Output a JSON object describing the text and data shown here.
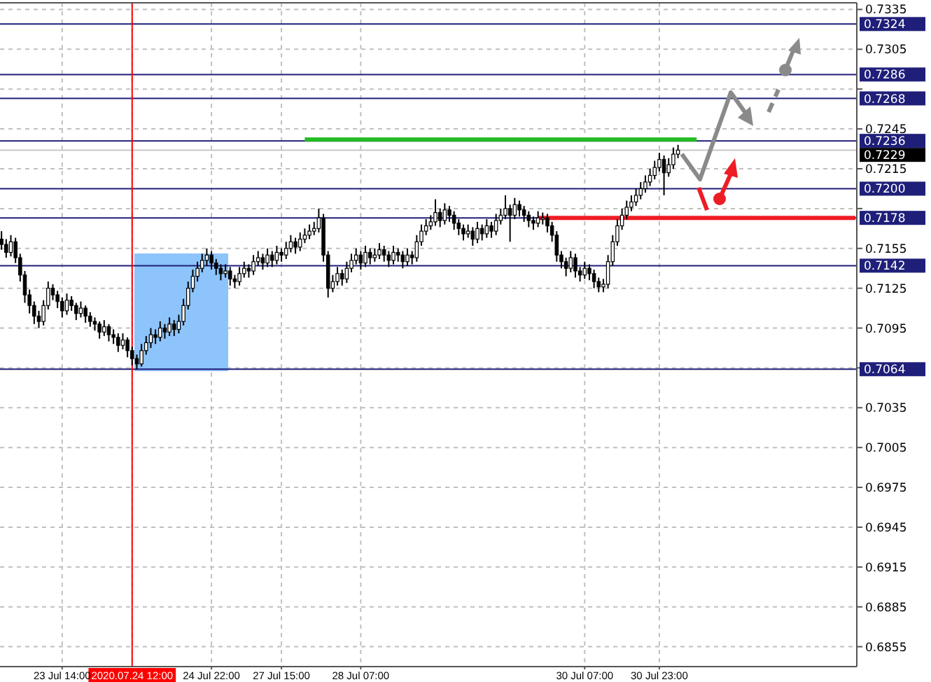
{
  "chart_data": {
    "type": "candlestick",
    "categories": [
      null,
      null,
      null,
      null,
      null,
      null,
      null,
      null,
      null,
      null,
      null,
      null,
      null,
      "23 Jul 14:00",
      null,
      null,
      null,
      null,
      null,
      null,
      null,
      null,
      null,
      null,
      null,
      null,
      null,
      null,
      "2020.07.24 12:00",
      null,
      null,
      null,
      null,
      null,
      null,
      null,
      null,
      null,
      null,
      null,
      null,
      null,
      null,
      null,
      null,
      "24 Jul 22:00",
      null,
      null,
      null,
      null,
      null,
      null,
      null,
      null,
      null,
      null,
      null,
      null,
      null,
      null,
      "27 Jul 15:00",
      null,
      null,
      null,
      null,
      null,
      null,
      null,
      null,
      null,
      null,
      null,
      null,
      null,
      null,
      null,
      null,
      "28 Jul 07:00",
      null,
      null,
      null,
      null,
      null,
      null,
      null,
      null,
      null,
      null,
      null,
      null,
      null,
      null,
      null,
      null,
      null,
      null,
      null,
      null,
      null,
      null,
      null,
      null,
      null,
      null,
      null,
      null,
      null,
      null,
      null,
      null,
      null,
      null,
      null,
      null,
      null,
      null,
      null,
      null,
      null,
      null,
      null,
      null,
      null,
      null,
      null,
      "30 Jul 07:00",
      null,
      null,
      null,
      null,
      null,
      null,
      null,
      null,
      null,
      null,
      null,
      null,
      null,
      null,
      null,
      "30 Jul 23:00",
      null,
      null,
      null,
      null,
      null,
      null,
      null,
      null,
      null,
      null,
      null,
      null,
      null,
      null,
      null,
      null,
      null,
      null,
      null,
      null,
      null,
      null,
      null,
      null,
      null,
      null,
      null,
      null,
      null,
      null,
      null,
      null,
      null,
      null,
      null,
      null,
      null,
      null,
      null,
      null,
      null,
      null
    ],
    "ohlc": [
      [
        0.7162,
        0.7168,
        0.7154,
        0.7158
      ],
      [
        0.7158,
        0.7162,
        0.7148,
        0.7152
      ],
      [
        0.7152,
        0.7165,
        0.7149,
        0.716
      ],
      [
        0.716,
        0.7163,
        0.7144,
        0.7148
      ],
      [
        0.7148,
        0.7151,
        0.713,
        0.7135
      ],
      [
        0.7135,
        0.7138,
        0.7114,
        0.712
      ],
      [
        0.712,
        0.7124,
        0.7106,
        0.7112
      ],
      [
        0.7112,
        0.7115,
        0.7098,
        0.7104
      ],
      [
        0.7104,
        0.7108,
        0.7095,
        0.71
      ],
      [
        0.71,
        0.7116,
        0.7097,
        0.7112
      ],
      [
        0.7112,
        0.713,
        0.7109,
        0.7125
      ],
      [
        0.7125,
        0.7128,
        0.7116,
        0.712
      ],
      [
        0.712,
        0.7123,
        0.711,
        0.7115
      ],
      [
        0.7115,
        0.7118,
        0.7103,
        0.7108
      ],
      [
        0.7108,
        0.7121,
        0.7105,
        0.7116
      ],
      [
        0.7116,
        0.7119,
        0.7108,
        0.7112
      ],
      [
        0.7112,
        0.7114,
        0.7101,
        0.7106
      ],
      [
        0.7106,
        0.7115,
        0.7103,
        0.711
      ],
      [
        0.711,
        0.7112,
        0.7099,
        0.7104
      ],
      [
        0.7104,
        0.7107,
        0.7096,
        0.71
      ],
      [
        0.71,
        0.7103,
        0.7093,
        0.7098
      ],
      [
        0.7098,
        0.71,
        0.7087,
        0.7092
      ],
      [
        0.7092,
        0.7101,
        0.7089,
        0.7096
      ],
      [
        0.7096,
        0.7098,
        0.7085,
        0.709
      ],
      [
        0.709,
        0.7094,
        0.7083,
        0.7088
      ],
      [
        0.7088,
        0.7091,
        0.7077,
        0.7082
      ],
      [
        0.7082,
        0.7091,
        0.7079,
        0.7086
      ],
      [
        0.7086,
        0.7088,
        0.7073,
        0.7078
      ],
      [
        0.7078,
        0.7081,
        0.7067,
        0.7072
      ],
      [
        0.7072,
        0.7075,
        0.7064,
        0.7068
      ],
      [
        0.7068,
        0.7083,
        0.7066,
        0.7078
      ],
      [
        0.7078,
        0.7089,
        0.7075,
        0.7084
      ],
      [
        0.7084,
        0.7095,
        0.708,
        0.709
      ],
      [
        0.709,
        0.7094,
        0.7083,
        0.7088
      ],
      [
        0.7088,
        0.71,
        0.7085,
        0.7095
      ],
      [
        0.7095,
        0.7098,
        0.7087,
        0.7092
      ],
      [
        0.7092,
        0.7103,
        0.7089,
        0.7098
      ],
      [
        0.7098,
        0.7101,
        0.7089,
        0.7094
      ],
      [
        0.7094,
        0.7105,
        0.7091,
        0.71
      ],
      [
        0.71,
        0.7117,
        0.7097,
        0.7112
      ],
      [
        0.7112,
        0.713,
        0.7109,
        0.7125
      ],
      [
        0.7125,
        0.7139,
        0.7122,
        0.7134
      ],
      [
        0.7134,
        0.7145,
        0.713,
        0.714
      ],
      [
        0.714,
        0.7151,
        0.7137,
        0.7146
      ],
      [
        0.7146,
        0.7155,
        0.7142,
        0.715
      ],
      [
        0.715,
        0.7153,
        0.7139,
        0.7144
      ],
      [
        0.7144,
        0.7147,
        0.7135,
        0.714
      ],
      [
        0.714,
        0.7143,
        0.7131,
        0.7136
      ],
      [
        0.7136,
        0.7143,
        0.7133,
        0.7138
      ],
      [
        0.7138,
        0.7141,
        0.7127,
        0.7132
      ],
      [
        0.7132,
        0.7135,
        0.7125,
        0.713
      ],
      [
        0.713,
        0.7141,
        0.7127,
        0.7136
      ],
      [
        0.7136,
        0.7145,
        0.7133,
        0.714
      ],
      [
        0.714,
        0.7143,
        0.7133,
        0.7138
      ],
      [
        0.7138,
        0.715,
        0.7135,
        0.7145
      ],
      [
        0.7145,
        0.7153,
        0.7142,
        0.7148
      ],
      [
        0.7148,
        0.7151,
        0.7139,
        0.7144
      ],
      [
        0.7144,
        0.7155,
        0.7141,
        0.715
      ],
      [
        0.715,
        0.7153,
        0.7141,
        0.7146
      ],
      [
        0.7146,
        0.7157,
        0.7143,
        0.7152
      ],
      [
        0.7152,
        0.7155,
        0.7145,
        0.715
      ],
      [
        0.715,
        0.716,
        0.7147,
        0.7155
      ],
      [
        0.7155,
        0.7165,
        0.7152,
        0.716
      ],
      [
        0.716,
        0.7163,
        0.7151,
        0.7156
      ],
      [
        0.7156,
        0.7167,
        0.7153,
        0.7162
      ],
      [
        0.7162,
        0.717,
        0.7159,
        0.7165
      ],
      [
        0.7165,
        0.7173,
        0.7162,
        0.7168
      ],
      [
        0.7168,
        0.7175,
        0.7165,
        0.717
      ],
      [
        0.717,
        0.7185,
        0.7167,
        0.7178
      ],
      [
        0.7178,
        0.7181,
        0.7145,
        0.715
      ],
      [
        0.715,
        0.7153,
        0.7118,
        0.7125
      ],
      [
        0.7125,
        0.7135,
        0.7122,
        0.713
      ],
      [
        0.713,
        0.7141,
        0.7127,
        0.7136
      ],
      [
        0.7136,
        0.7139,
        0.7127,
        0.7132
      ],
      [
        0.7132,
        0.7145,
        0.7129,
        0.714
      ],
      [
        0.714,
        0.7151,
        0.7137,
        0.7146
      ],
      [
        0.7146,
        0.7155,
        0.7143,
        0.715
      ],
      [
        0.715,
        0.7153,
        0.7139,
        0.7144
      ],
      [
        0.7144,
        0.7157,
        0.7141,
        0.7152
      ],
      [
        0.7152,
        0.7155,
        0.7143,
        0.7148
      ],
      [
        0.7148,
        0.7155,
        0.7145,
        0.715
      ],
      [
        0.715,
        0.7159,
        0.7147,
        0.7154
      ],
      [
        0.7154,
        0.7157,
        0.7145,
        0.715
      ],
      [
        0.715,
        0.7153,
        0.7141,
        0.7146
      ],
      [
        0.7146,
        0.7157,
        0.7143,
        0.7152
      ],
      [
        0.7152,
        0.7155,
        0.7145,
        0.715
      ],
      [
        0.715,
        0.7153,
        0.714,
        0.7145
      ],
      [
        0.7145,
        0.7155,
        0.7142,
        0.715
      ],
      [
        0.715,
        0.7153,
        0.7143,
        0.7148
      ],
      [
        0.7148,
        0.7165,
        0.7145,
        0.716
      ],
      [
        0.716,
        0.7173,
        0.7157,
        0.7168
      ],
      [
        0.7168,
        0.7177,
        0.7165,
        0.7172
      ],
      [
        0.7172,
        0.718,
        0.7169,
        0.7175
      ],
      [
        0.7175,
        0.7192,
        0.7172,
        0.7182
      ],
      [
        0.7182,
        0.7185,
        0.7171,
        0.7176
      ],
      [
        0.7176,
        0.7189,
        0.7173,
        0.7184
      ],
      [
        0.7184,
        0.7187,
        0.7175,
        0.718
      ],
      [
        0.718,
        0.7183,
        0.7169,
        0.7174
      ],
      [
        0.7174,
        0.7177,
        0.7165,
        0.717
      ],
      [
        0.717,
        0.7173,
        0.7161,
        0.7166
      ],
      [
        0.7166,
        0.7173,
        0.7163,
        0.7168
      ],
      [
        0.7168,
        0.7171,
        0.7157,
        0.7162
      ],
      [
        0.7162,
        0.7175,
        0.7159,
        0.717
      ],
      [
        0.717,
        0.7173,
        0.7161,
        0.7166
      ],
      [
        0.7166,
        0.7177,
        0.7163,
        0.7172
      ],
      [
        0.7172,
        0.7175,
        0.7163,
        0.7168
      ],
      [
        0.7168,
        0.7181,
        0.7165,
        0.7176
      ],
      [
        0.7176,
        0.7185,
        0.7173,
        0.718
      ],
      [
        0.718,
        0.7195,
        0.7177,
        0.7185
      ],
      [
        0.7185,
        0.7188,
        0.716,
        0.718
      ],
      [
        0.718,
        0.7193,
        0.7177,
        0.7188
      ],
      [
        0.7188,
        0.7191,
        0.7179,
        0.7184
      ],
      [
        0.7184,
        0.7187,
        0.7175,
        0.718
      ],
      [
        0.718,
        0.7183,
        0.7171,
        0.7176
      ],
      [
        0.7176,
        0.7179,
        0.7169,
        0.7174
      ],
      [
        0.7174,
        0.7183,
        0.7171,
        0.7178
      ],
      [
        0.7178,
        0.7182,
        0.7173,
        0.7178
      ],
      [
        0.7178,
        0.7181,
        0.7167,
        0.7172
      ],
      [
        0.7172,
        0.7175,
        0.716,
        0.7165
      ],
      [
        0.7165,
        0.7168,
        0.7145,
        0.715
      ],
      [
        0.715,
        0.7153,
        0.714,
        0.7145
      ],
      [
        0.7145,
        0.7148,
        0.7134,
        0.714
      ],
      [
        0.714,
        0.7153,
        0.7137,
        0.7148
      ],
      [
        0.7148,
        0.7151,
        0.7133,
        0.7138
      ],
      [
        0.7138,
        0.7141,
        0.713,
        0.7135
      ],
      [
        0.7135,
        0.7145,
        0.7132,
        0.714
      ],
      [
        0.714,
        0.7143,
        0.7131,
        0.7136
      ],
      [
        0.7136,
        0.7139,
        0.7125,
        0.713
      ],
      [
        0.713,
        0.7133,
        0.7122,
        0.7126
      ],
      [
        0.7126,
        0.7132,
        0.7122,
        0.7128
      ],
      [
        0.7128,
        0.715,
        0.7125,
        0.7145
      ],
      [
        0.7145,
        0.7165,
        0.7142,
        0.716
      ],
      [
        0.716,
        0.7177,
        0.7157,
        0.7172
      ],
      [
        0.7172,
        0.7185,
        0.7169,
        0.718
      ],
      [
        0.718,
        0.7191,
        0.7177,
        0.7186
      ],
      [
        0.7186,
        0.7195,
        0.7183,
        0.719
      ],
      [
        0.719,
        0.72,
        0.7187,
        0.7195
      ],
      [
        0.7195,
        0.7205,
        0.7192,
        0.72
      ],
      [
        0.72,
        0.721,
        0.7197,
        0.7205
      ],
      [
        0.7205,
        0.7215,
        0.7202,
        0.721
      ],
      [
        0.721,
        0.7221,
        0.7207,
        0.7216
      ],
      [
        0.7216,
        0.7227,
        0.7213,
        0.7222
      ],
      [
        0.7222,
        0.7225,
        0.7195,
        0.7212
      ],
      [
        0.7212,
        0.7223,
        0.7209,
        0.7218
      ],
      [
        0.7218,
        0.7231,
        0.7215,
        0.7226
      ],
      [
        0.7226,
        0.7233,
        0.7223,
        0.7229
      ],
      null,
      null,
      null,
      null,
      null,
      null,
      null,
      null,
      null,
      null,
      null,
      null,
      null,
      null,
      null,
      null,
      null,
      null,
      null,
      null,
      null,
      null,
      null,
      null,
      null,
      null,
      null,
      null,
      null,
      null,
      null,
      null,
      null,
      null,
      null,
      null,
      null,
      null
    ],
    "series": [
      {
        "type": "line",
        "color": "#22bb22",
        "values": [
          null,
          null,
          null,
          null,
          null,
          null,
          null,
          null,
          null,
          null,
          null,
          null,
          null,
          null,
          null,
          null,
          null,
          null,
          null,
          null,
          null,
          null,
          null,
          null,
          null,
          null,
          null,
          null,
          null,
          null,
          null,
          null,
          null,
          null,
          null,
          null,
          null,
          null,
          null,
          null,
          null,
          null,
          null,
          null,
          null,
          null,
          null,
          null,
          null,
          null,
          null,
          null,
          null,
          null,
          null,
          null,
          null,
          null,
          null,
          null,
          null,
          null,
          null,
          null,
          null,
          0.7237,
          0.7237,
          0.7237,
          0.7237,
          0.7237,
          0.7237,
          0.7237,
          0.7237,
          0.7237,
          0.7237,
          0.7237,
          0.7237,
          0.7237,
          0.7237,
          0.7237,
          0.7237,
          0.7237,
          0.7237,
          0.7237,
          0.7237,
          0.7237,
          0.7237,
          0.7237,
          0.7237,
          0.7237,
          0.7237,
          0.7237,
          0.7237,
          0.7237,
          0.7237,
          0.7237,
          0.7237,
          0.7237,
          0.7237,
          0.7237,
          0.7237,
          0.7237,
          0.7237,
          0.7237,
          0.7237,
          0.7237,
          0.7237,
          0.7237,
          0.7237,
          0.7237,
          0.7237,
          0.7237,
          0.7237,
          0.7237,
          0.7237,
          0.7237,
          0.7237,
          0.7237,
          0.7237,
          0.7237,
          0.7237,
          0.7237,
          0.7237,
          0.7237,
          0.7237,
          0.7237,
          0.7237,
          0.7237,
          0.7237,
          0.7237,
          0.7237,
          0.7237,
          0.7237,
          0.7237,
          0.7237,
          0.7237,
          0.7237,
          0.7237,
          0.7237,
          0.7237,
          0.7237,
          0.7237,
          0.7237,
          0.7237,
          0.7237,
          0.7237,
          0.7237,
          0.7237,
          0.7237,
          0.7237,
          null,
          null,
          null,
          null,
          null,
          null,
          null,
          null,
          null,
          null,
          null,
          null,
          null,
          null,
          null,
          null,
          null,
          null,
          null,
          null,
          null,
          null,
          null,
          null,
          null,
          null,
          null,
          null,
          null,
          null,
          null,
          null,
          null,
          null
        ]
      },
      {
        "type": "line",
        "color": "#ee1c25",
        "values": [
          null,
          null,
          null,
          null,
          null,
          null,
          null,
          null,
          null,
          null,
          null,
          null,
          null,
          null,
          null,
          null,
          null,
          null,
          null,
          null,
          null,
          null,
          null,
          null,
          null,
          null,
          null,
          null,
          null,
          null,
          null,
          null,
          null,
          null,
          null,
          null,
          null,
          null,
          null,
          null,
          null,
          null,
          null,
          null,
          null,
          null,
          null,
          null,
          null,
          null,
          null,
          null,
          null,
          null,
          null,
          null,
          null,
          null,
          null,
          null,
          null,
          null,
          null,
          null,
          null,
          null,
          null,
          null,
          null,
          null,
          null,
          null,
          null,
          null,
          null,
          null,
          null,
          null,
          null,
          null,
          null,
          null,
          null,
          null,
          null,
          null,
          null,
          null,
          null,
          null,
          null,
          null,
          null,
          null,
          null,
          null,
          null,
          null,
          null,
          null,
          null,
          null,
          null,
          null,
          null,
          null,
          null,
          null,
          null,
          null,
          null,
          null,
          null,
          null,
          null,
          0.7178,
          0.7178,
          0.7178,
          0.7178,
          0.7178,
          0.7178,
          0.7178,
          0.7178,
          0.7178,
          0.7178,
          0.7178,
          0.7178,
          0.7178,
          0.7178,
          0.7178,
          0.7178,
          0.7178,
          0.7178,
          0.7178,
          0.7178,
          0.7178,
          0.7178,
          0.7178,
          0.7178,
          0.7178,
          0.7178,
          0.7178,
          0.7178,
          0.7178,
          0.7178,
          0.7178,
          0.7178,
          0.7178,
          0.7178,
          0.7178,
          0.7178,
          0.7178,
          0.7178,
          0.7178,
          0.7178,
          0.7178,
          0.7178,
          0.7178,
          0.7178,
          0.7178,
          0.7178,
          0.7178,
          0.7178,
          0.7178,
          0.7178,
          0.7178,
          0.7178,
          0.7178,
          0.7178,
          0.7178,
          0.7178,
          0.7178,
          0.7178,
          0.7178,
          0.7178,
          0.7178,
          0.7178,
          0.7178,
          0.7178,
          0.7178,
          0.7178,
          0.7178,
          0.7178,
          0.7178
        ]
      }
    ],
    "ylim": [
      0.684,
      0.734
    ],
    "yticks": [
      0.7335,
      0.7305,
      {
        "value": 0.7275,
        "label": null
      },
      0.7245,
      0.7215,
      {
        "value": 0.7185,
        "label": null
      },
      0.7155,
      0.7125,
      0.7095,
      {
        "value": 0.7065,
        "label": null
      },
      0.7035,
      0.7005,
      0.6975,
      0.6945,
      0.6915,
      0.6885,
      0.6855
    ],
    "ref_lines": [
      {
        "axis": "y",
        "value": 0.7324,
        "label": "0.7324",
        "color": "#1f1f7a"
      },
      {
        "axis": "y",
        "value": 0.7286,
        "label": "0.7286",
        "color": "#1f1f7a"
      },
      {
        "axis": "y",
        "value": 0.7268,
        "label": "0.7268",
        "color": "#1f1f7a"
      },
      {
        "axis": "y",
        "value": 0.7236,
        "label": "0.7236",
        "color": "#1f1f7a"
      },
      {
        "axis": "y",
        "value": 0.7229,
        "label": "0.7229",
        "color": "#c8c8c8"
      },
      {
        "axis": "y",
        "value": 0.72,
        "label": "0.7200",
        "color": "#1f1f7a"
      },
      {
        "axis": "y",
        "value": 0.7178,
        "label": "0.7178",
        "color": "#1f1f7a"
      },
      {
        "axis": "y",
        "value": 0.7142,
        "label": "0.7142",
        "color": "#1f1f7a"
      },
      {
        "axis": "y",
        "value": 0.7064,
        "label": "0.7064",
        "color": "#1f1f7a"
      },
      {
        "axis": "x",
        "value": "2020.07.24 12:00",
        "color": "#ff0000"
      }
    ],
    "grid": true
  }
}
